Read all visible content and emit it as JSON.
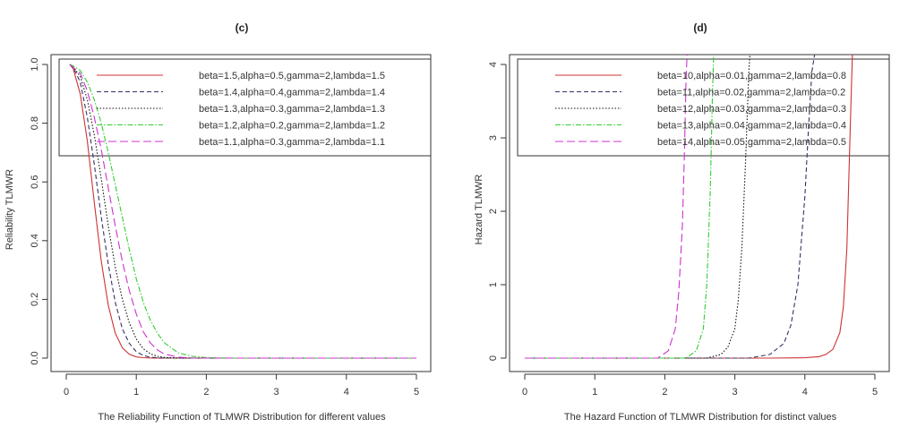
{
  "chart_data": [
    {
      "type": "line",
      "title": "(c)",
      "xlabel": "The Reliability Function of TLMWR Distribution for different values",
      "ylabel": "Reliability TLMWR",
      "xlim": [
        0,
        5
      ],
      "ylim": [
        0,
        1
      ],
      "xticks": [
        "0",
        "1",
        "2",
        "3",
        "4",
        "5"
      ],
      "yticks": [
        "0.0",
        "0.2",
        "0.4",
        "0.6",
        "0.8",
        "1.0"
      ],
      "legend_position": "top",
      "series": [
        {
          "name": "beta=1.5,alpha=0.5,gamma=2,lambda=1.5",
          "color": "#cc3333",
          "style": "solid",
          "x": [
            0.05,
            0.1,
            0.2,
            0.3,
            0.4,
            0.5,
            0.6,
            0.7,
            0.8,
            0.9,
            1.0,
            1.1,
            1.2,
            1.3,
            1.5,
            5.0
          ],
          "y": [
            1.0,
            0.985,
            0.9,
            0.74,
            0.53,
            0.33,
            0.18,
            0.085,
            0.035,
            0.013,
            0.004,
            0.0015,
            0.0005,
            0.0002,
            0.0,
            0.0
          ]
        },
        {
          "name": "beta=1.4,alpha=0.4,gamma=2,lambda=1.4",
          "color": "#333366",
          "style": "dashed",
          "x": [
            0.05,
            0.1,
            0.2,
            0.3,
            0.4,
            0.5,
            0.6,
            0.7,
            0.8,
            0.9,
            1.0,
            1.1,
            1.2,
            1.3,
            1.4,
            1.6,
            5.0
          ],
          "y": [
            1.0,
            0.99,
            0.94,
            0.82,
            0.66,
            0.48,
            0.32,
            0.19,
            0.1,
            0.05,
            0.022,
            0.009,
            0.003,
            0.001,
            0.0004,
            0.0,
            0.0
          ]
        },
        {
          "name": "beta=1.3,alpha=0.3,gamma=2,lambda=1.3",
          "color": "#111111",
          "style": "dotted",
          "x": [
            0.05,
            0.1,
            0.2,
            0.3,
            0.4,
            0.5,
            0.6,
            0.7,
            0.8,
            0.9,
            1.0,
            1.1,
            1.2,
            1.3,
            1.4,
            1.6,
            1.8,
            5.0
          ],
          "y": [
            1.0,
            0.99,
            0.96,
            0.88,
            0.76,
            0.61,
            0.45,
            0.31,
            0.2,
            0.12,
            0.065,
            0.032,
            0.015,
            0.006,
            0.0025,
            0.0003,
            0.0,
            0.0
          ]
        },
        {
          "name": "beta=1.2,alpha=0.2,gamma=2,lambda=1.2",
          "color": "#33cc33",
          "style": "dashdot",
          "x": [
            0.05,
            0.1,
            0.2,
            0.3,
            0.4,
            0.5,
            0.6,
            0.7,
            0.8,
            0.9,
            1.0,
            1.1,
            1.2,
            1.3,
            1.4,
            1.6,
            1.8,
            2.0,
            2.2,
            2.4,
            5.0
          ],
          "y": [
            1.0,
            0.995,
            0.98,
            0.94,
            0.88,
            0.8,
            0.7,
            0.59,
            0.48,
            0.37,
            0.27,
            0.19,
            0.13,
            0.085,
            0.052,
            0.018,
            0.006,
            0.0018,
            0.0005,
            0.0,
            0.0
          ]
        },
        {
          "name": "beta=1.1,alpha=0.3,gamma=2,lambda=1.1",
          "color": "#cc33cc",
          "style": "longdash",
          "x": [
            0.05,
            0.1,
            0.2,
            0.3,
            0.4,
            0.5,
            0.6,
            0.7,
            0.8,
            0.9,
            1.0,
            1.1,
            1.2,
            1.3,
            1.4,
            1.6,
            1.8,
            2.0,
            5.0
          ],
          "y": [
            1.0,
            0.99,
            0.97,
            0.91,
            0.82,
            0.71,
            0.58,
            0.45,
            0.33,
            0.23,
            0.15,
            0.09,
            0.052,
            0.028,
            0.014,
            0.003,
            0.0005,
            0.0,
            0.0
          ]
        }
      ]
    },
    {
      "type": "line",
      "title": "(d)",
      "xlabel": "The Hazard Function of TLMWR Distribution for distinct values",
      "ylabel": "Hazard TLMWR",
      "xlim": [
        0,
        5
      ],
      "ylim": [
        0,
        4
      ],
      "xticks": [
        "0",
        "1",
        "2",
        "3",
        "4",
        "5"
      ],
      "yticks": [
        "0",
        "1",
        "2",
        "3",
        "4"
      ],
      "legend_position": "top",
      "series": [
        {
          "name": "beta=10,alpha=0.01,gamma=2,lambda=0.8",
          "color": "#cc3333",
          "style": "solid",
          "x": [
            0.0,
            3.5,
            4.0,
            4.2,
            4.3,
            4.4,
            4.5,
            4.55,
            4.6,
            4.65,
            4.68
          ],
          "y": [
            0.0,
            0.0,
            0.005,
            0.02,
            0.05,
            0.12,
            0.35,
            0.7,
            1.5,
            3.2,
            4.2
          ]
        },
        {
          "name": "beta=11,alpha=0.02,gamma=2,lambda=0.2",
          "color": "#333366",
          "style": "dashed",
          "x": [
            0.0,
            3.2,
            3.5,
            3.7,
            3.8,
            3.9,
            4.0,
            4.05,
            4.1,
            4.15
          ],
          "y": [
            0.0,
            0.0,
            0.05,
            0.2,
            0.45,
            1.0,
            2.2,
            3.1,
            3.9,
            4.2
          ]
        },
        {
          "name": "beta=12,alpha=0.03,gamma=2,lambda=0.3",
          "color": "#111111",
          "style": "dotted",
          "x": [
            0.0,
            2.6,
            2.8,
            2.9,
            3.0,
            3.05,
            3.1,
            3.15,
            3.2,
            3.22
          ],
          "y": [
            0.0,
            0.0,
            0.05,
            0.15,
            0.4,
            0.8,
            1.5,
            2.6,
            3.9,
            4.2
          ]
        },
        {
          "name": "beta=13,alpha=0.04,gamma=2,lambda=0.4",
          "color": "#33cc33",
          "style": "dashdot",
          "x": [
            0.0,
            2.3,
            2.45,
            2.55,
            2.6,
            2.65,
            2.68,
            2.7
          ],
          "y": [
            0.0,
            0.0,
            0.1,
            0.4,
            1.0,
            2.3,
            3.6,
            4.2
          ]
        },
        {
          "name": "beta=14,alpha=0.05,gamma=2,lambda=0.5",
          "color": "#cc33cc",
          "style": "longdash",
          "x": [
            0.0,
            1.9,
            2.05,
            2.15,
            2.2,
            2.25,
            2.28,
            2.3,
            2.32
          ],
          "y": [
            0.0,
            0.0,
            0.1,
            0.4,
            0.9,
            1.8,
            2.8,
            3.7,
            4.2
          ]
        }
      ]
    }
  ]
}
